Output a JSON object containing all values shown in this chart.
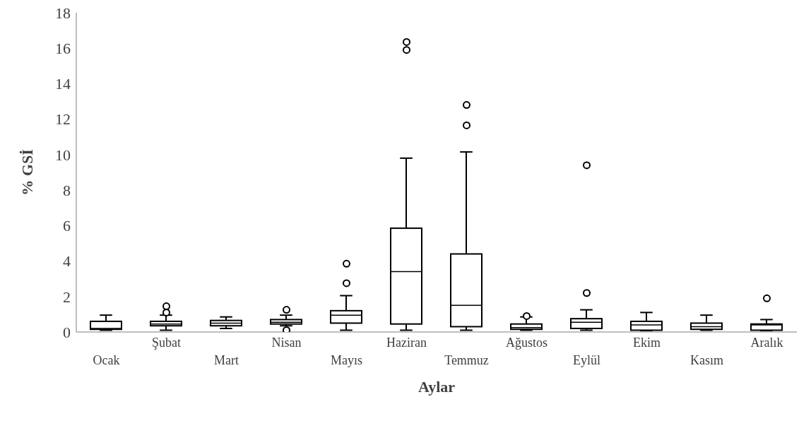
{
  "chart_data": {
    "type": "box",
    "xlabel": "Aylar",
    "ylabel": "% GSİ",
    "color": "#000000",
    "grid": false,
    "marker": "circle",
    "categories": [
      "Ocak",
      "Şubat",
      "Mart",
      "Nisan",
      "Mayıs",
      "Haziran",
      "Temmuz",
      "Ağustos",
      "Eylül",
      "Ekim",
      "Kasım",
      "Aralık"
    ],
    "ylim": [
      0,
      18
    ],
    "yticks": [
      0,
      2,
      4,
      6,
      8,
      10,
      12,
      14,
      16,
      18
    ],
    "boxes": [
      {
        "low": 0.1,
        "q1": 0.15,
        "median": 0.2,
        "q3": 0.6,
        "high": 0.95
      },
      {
        "low": 0.1,
        "q1": 0.35,
        "median": 0.45,
        "q3": 0.6,
        "high": 0.95,
        "outliers": [
          1.1,
          1.45
        ]
      },
      {
        "low": 0.2,
        "q1": 0.35,
        "median": 0.5,
        "q3": 0.65,
        "high": 0.85
      },
      {
        "low": 0.35,
        "q1": 0.45,
        "median": 0.55,
        "q3": 0.7,
        "high": 0.95,
        "outliers": [
          0.1,
          1.25
        ]
      },
      {
        "low": 0.1,
        "q1": 0.5,
        "median": 0.95,
        "q3": 1.2,
        "high": 2.05,
        "outliers": [
          2.75,
          3.85
        ]
      },
      {
        "low": 0.1,
        "q1": 0.45,
        "median": 3.4,
        "q3": 5.85,
        "high": 9.8,
        "outliers": [
          15.9,
          16.35
        ]
      },
      {
        "low": 0.1,
        "q1": 0.3,
        "median": 1.5,
        "q3": 4.4,
        "high": 10.15,
        "outliers": [
          11.65,
          12.8
        ]
      },
      {
        "low": 0.1,
        "q1": 0.15,
        "median": 0.25,
        "q3": 0.45,
        "high": 0.85,
        "outliers": [
          0.9
        ]
      },
      {
        "low": 0.1,
        "q1": 0.2,
        "median": 0.55,
        "q3": 0.75,
        "high": 1.25,
        "outliers": [
          2.2,
          9.4
        ]
      },
      {
        "low": 0.05,
        "q1": 0.1,
        "median": 0.4,
        "q3": 0.6,
        "high": 1.1
      },
      {
        "low": 0.1,
        "q1": 0.15,
        "median": 0.3,
        "q3": 0.5,
        "high": 0.95
      },
      {
        "low": 0.05,
        "q1": 0.1,
        "median": 0.4,
        "q3": 0.45,
        "high": 0.7,
        "outliers": [
          1.9
        ]
      }
    ]
  }
}
